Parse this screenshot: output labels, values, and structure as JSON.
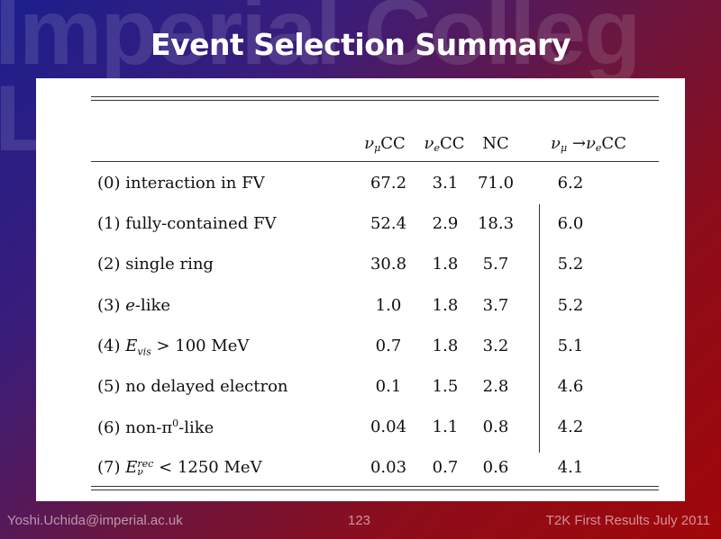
{
  "watermark": {
    "line1": "Imperial Colleg",
    "line2": "L"
  },
  "slide_title": "Event Selection Summary",
  "table": {
    "columns": [
      "ν_μ CC",
      "ν_e CC",
      "NC",
      "ν_μ → ν_e CC"
    ],
    "rows": [
      {
        "label": "(0) interaction in FV",
        "values": [
          "67.2",
          "3.1",
          "71.0",
          "6.2"
        ]
      },
      {
        "label": "(1) fully-contained FV",
        "values": [
          "52.4",
          "2.9",
          "18.3",
          "6.0"
        ]
      },
      {
        "label": "(2) single ring",
        "values": [
          "30.8",
          "1.8",
          "5.7",
          "5.2"
        ]
      },
      {
        "label": "(3) e-like",
        "values": [
          "1.0",
          "1.8",
          "3.7",
          "5.2"
        ]
      },
      {
        "label": "(4) E_vis > 100 MeV",
        "values": [
          "0.7",
          "1.8",
          "3.2",
          "5.1"
        ]
      },
      {
        "label": "(5) no delayed electron",
        "values": [
          "0.1",
          "1.5",
          "2.8",
          "4.6"
        ]
      },
      {
        "label": "(6) non-π0-like",
        "values": [
          "0.04",
          "1.1",
          "0.8",
          "4.2"
        ]
      },
      {
        "label": "(7) E_ν^rec < 1250 MeV",
        "values": [
          "0.03",
          "0.7",
          "0.6",
          "4.1"
        ]
      }
    ]
  },
  "footer": {
    "email": "Yoshi.Uchida@imperial.ac.uk",
    "page_number": "123",
    "talk": "T2K First Results July 2011"
  }
}
